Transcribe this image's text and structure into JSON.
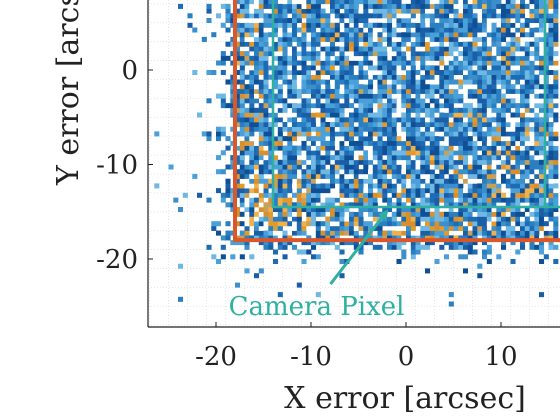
{
  "chart_data": {
    "type": "heatmap",
    "xlabel": "X error [arcsec]",
    "ylabel": "Y error [arcsec]",
    "ylabel_visible_text": "Y error [arcs",
    "xlim": [
      -27,
      16
    ],
    "ylim": [
      -27.5,
      7.5
    ],
    "x_ticks": [
      -20,
      -10,
      0,
      10
    ],
    "x_tick_labels": [
      "-20",
      "-10",
      "0",
      "10"
    ],
    "y_ticks": [
      0,
      -10,
      -20
    ],
    "y_tick_labels": [
      "0",
      "-10",
      "-20"
    ],
    "grid": "minor dotted",
    "colormap": [
      "#ffffff",
      "#1a5ea8",
      "#2a7fc0",
      "#4aa0d8",
      "#e39a2c",
      "#f0b04a"
    ],
    "orange_boundary": {
      "x_min": -18,
      "y_min": -18,
      "color": "#d9572b"
    },
    "teal_boundary": {
      "x_min": -14,
      "y_min": -14.5,
      "color": "#2fb0a0"
    },
    "annotation": {
      "text": "Camera Pixel",
      "color": "#2fb0a0",
      "text_anchor": [
        -9,
        -25.2
      ],
      "arrow_from": [
        -9,
        -23.5
      ],
      "arrow_to": [
        -2,
        -14.5
      ]
    }
  }
}
